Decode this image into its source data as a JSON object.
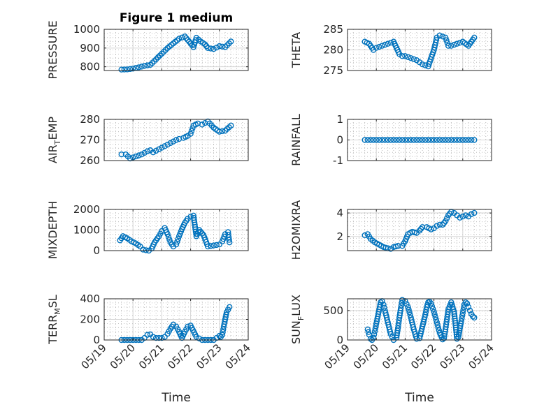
{
  "figure_title": "Figure 1 medium",
  "colors": {
    "marker": "#0072bd",
    "axis": "#262626",
    "grid": "#b0b0b0"
  },
  "chart_data": [
    {
      "type": "scatter",
      "title": "Figure 1 medium",
      "ylabel": "PRESSURE",
      "ylabel_parts": [
        "PRESSURE"
      ],
      "xlabel": "",
      "ylim": [
        780,
        1000
      ],
      "yticks": [
        800,
        900,
        1000
      ],
      "yticklabels": [
        "800",
        "900",
        "1000"
      ],
      "xlim": [
        0,
        5
      ],
      "xticks": [
        0,
        1,
        2,
        3,
        4,
        5
      ],
      "xticklabels": [],
      "grid": true,
      "series": [
        {
          "x": [
            0.6,
            0.8,
            1.0,
            1.2,
            1.4,
            1.6,
            1.8,
            2.0,
            2.2,
            2.4,
            2.6,
            2.8,
            3.0,
            3.1,
            3.2,
            3.35,
            3.5,
            3.6,
            3.8,
            4.0,
            4.2,
            4.4
          ],
          "y": [
            785,
            786,
            790,
            797,
            805,
            810,
            840,
            870,
            900,
            925,
            950,
            962,
            925,
            905,
            955,
            935,
            920,
            900,
            895,
            910,
            905,
            935
          ]
        }
      ]
    },
    {
      "type": "scatter",
      "title": "",
      "ylabel": "THETA",
      "ylabel_parts": [
        "THETA"
      ],
      "xlabel": "",
      "ylim": [
        275,
        285
      ],
      "yticks": [
        275,
        280,
        285
      ],
      "yticklabels": [
        "275",
        "280",
        "285"
      ],
      "xlim": [
        0,
        5
      ],
      "xticks": [
        0,
        1,
        2,
        3,
        4,
        5
      ],
      "xticklabels": [],
      "grid": true,
      "series": [
        {
          "x": [
            0.6,
            0.75,
            0.9,
            1.0,
            1.2,
            1.4,
            1.6,
            1.8,
            1.9,
            2.0,
            2.2,
            2.4,
            2.5,
            2.6,
            2.8,
            3.0,
            3.1,
            3.2,
            3.4,
            3.5,
            3.6,
            3.8,
            4.0,
            4.2,
            4.4
          ],
          "y": [
            282,
            281.5,
            280,
            280.5,
            281,
            281.5,
            282,
            279,
            278.5,
            278.5,
            278,
            277.5,
            277,
            276.5,
            276,
            280,
            283,
            283.5,
            283,
            281,
            281,
            281.5,
            282,
            281,
            283
          ]
        }
      ]
    },
    {
      "type": "scatter",
      "title": "",
      "ylabel": "AIR_TEMP",
      "ylabel_parts": [
        "AIR",
        "T",
        "EMP"
      ],
      "xlabel": "",
      "ylim": [
        260,
        280
      ],
      "yticks": [
        260,
        270,
        280
      ],
      "yticklabels": [
        "260",
        "270",
        "280"
      ],
      "xlim": [
        0,
        5
      ],
      "xticks": [
        0,
        1,
        2,
        3,
        4,
        5
      ],
      "xticklabels": [],
      "grid": true,
      "series": [
        {
          "x": [
            0.6,
            0.75,
            0.9,
            1.1,
            1.3,
            1.5,
            1.6,
            1.7,
            1.9,
            2.1,
            2.3,
            2.5,
            2.6,
            2.75,
            2.9,
            3.0,
            3.1,
            3.25,
            3.4,
            3.6,
            3.8,
            4.0,
            4.2,
            4.4
          ],
          "y": [
            263,
            263,
            261,
            262,
            263,
            264.5,
            265,
            264,
            265.5,
            267,
            268.5,
            270,
            270.5,
            271,
            272,
            273,
            277,
            278,
            277.5,
            279,
            276,
            274,
            274.5,
            277
          ]
        }
      ]
    },
    {
      "type": "scatter",
      "title": "",
      "ylabel": "RAINFALL",
      "ylabel_parts": [
        "RAINFALL"
      ],
      "xlabel": "",
      "ylim": [
        -1,
        1
      ],
      "yticks": [
        -1,
        0,
        1
      ],
      "yticklabels": [
        "-1",
        "0",
        "1"
      ],
      "xlim": [
        0,
        5
      ],
      "xticks": [
        0,
        1,
        2,
        3,
        4,
        5
      ],
      "xticklabels": [],
      "grid": true,
      "series": [
        {
          "x": [
            0.6,
            0.8,
            1.0,
            1.2,
            1.4,
            1.6,
            1.8,
            2.0,
            2.2,
            2.4,
            2.6,
            2.8,
            3.0,
            3.2,
            3.4,
            3.6,
            3.8,
            4.0,
            4.2,
            4.4
          ],
          "y": [
            0,
            0,
            0,
            0,
            0,
            0,
            0,
            0,
            0,
            0,
            0,
            0,
            0,
            0,
            0,
            0,
            0,
            0,
            0,
            0
          ]
        }
      ]
    },
    {
      "type": "scatter",
      "title": "",
      "ylabel": "MIXDEPTH",
      "ylabel_parts": [
        "MIXDEPTH"
      ],
      "xlabel": "",
      "ylim": [
        0,
        2000
      ],
      "yticks": [
        0,
        1000,
        2000
      ],
      "yticklabels": [
        "0",
        "1000",
        "2000"
      ],
      "xlim": [
        0,
        5
      ],
      "xticks": [
        0,
        1,
        2,
        3,
        4,
        5
      ],
      "xticklabels": [],
      "grid": true,
      "series": [
        {
          "x": [
            0.55,
            0.65,
            0.8,
            0.95,
            1.1,
            1.25,
            1.35,
            1.45,
            1.55,
            1.65,
            1.75,
            1.9,
            2.0,
            2.1,
            2.2,
            2.3,
            2.4,
            2.5,
            2.6,
            2.7,
            2.8,
            2.9,
            3.0,
            3.1,
            3.2,
            3.3,
            3.45,
            3.6,
            3.8,
            4.0,
            4.1,
            4.2,
            4.3,
            4.35
          ],
          "y": [
            500,
            700,
            600,
            450,
            350,
            200,
            50,
            20,
            0,
            100,
            400,
            700,
            950,
            1100,
            800,
            400,
            200,
            300,
            700,
            1050,
            1350,
            1550,
            1650,
            1700,
            700,
            1000,
            750,
            200,
            250,
            300,
            450,
            800,
            900,
            400
          ]
        }
      ]
    },
    {
      "type": "scatter",
      "title": "",
      "ylabel": "H2OMIXRA",
      "ylabel_parts": [
        "H2OMIXRA"
      ],
      "xlabel": "",
      "ylim": [
        0.8,
        4.3
      ],
      "yticks": [
        2,
        4
      ],
      "yticklabels": [
        "2",
        "4"
      ],
      "xlim": [
        0,
        5
      ],
      "xticks": [
        0,
        1,
        2,
        3,
        4,
        5
      ],
      "xticklabels": [],
      "grid": true,
      "series": [
        {
          "x": [
            0.6,
            0.7,
            0.8,
            0.95,
            1.1,
            1.25,
            1.4,
            1.5,
            1.6,
            1.75,
            1.9,
            2.0,
            2.1,
            2.25,
            2.4,
            2.5,
            2.6,
            2.75,
            2.9,
            3.0,
            3.1,
            3.2,
            3.3,
            3.4,
            3.5,
            3.6,
            3.7,
            3.8,
            3.9,
            4.0,
            4.1,
            4.2,
            4.3,
            4.4
          ],
          "y": [
            2.1,
            2.2,
            1.8,
            1.5,
            1.3,
            1.1,
            1.0,
            0.95,
            1.1,
            1.2,
            1.2,
            1.6,
            2.2,
            2.4,
            2.3,
            2.5,
            2.8,
            2.8,
            2.6,
            2.7,
            2.9,
            3.0,
            3.0,
            3.3,
            3.8,
            4.1,
            4.0,
            3.8,
            3.6,
            3.7,
            3.8,
            3.7,
            3.9,
            4.0
          ]
        }
      ]
    },
    {
      "type": "scatter",
      "title": "",
      "ylabel": "TERR_MSL",
      "ylabel_parts": [
        "TERR",
        "M",
        "SL"
      ],
      "xlabel": "Time",
      "ylim": [
        0,
        400
      ],
      "yticks": [
        0,
        200,
        400
      ],
      "yticklabels": [
        "0",
        "200",
        "400"
      ],
      "xlim": [
        0,
        5
      ],
      "xticks": [
        0,
        1,
        2,
        3,
        4,
        5
      ],
      "xticklabels": [
        "05/19",
        "05/20",
        "05/21",
        "05/22",
        "05/23",
        "05/24"
      ],
      "grid": true,
      "series": [
        {
          "x": [
            0.6,
            0.8,
            1.0,
            1.2,
            1.3,
            1.4,
            1.5,
            1.6,
            1.7,
            1.8,
            2.0,
            2.1,
            2.2,
            2.3,
            2.4,
            2.5,
            2.6,
            2.7,
            2.8,
            2.9,
            3.0,
            3.2,
            3.4,
            3.5,
            3.6,
            3.8,
            3.9,
            4.0,
            4.05,
            4.1,
            4.15,
            4.25,
            4.35
          ],
          "y": [
            0,
            0,
            0,
            0,
            0,
            20,
            50,
            55,
            30,
            20,
            20,
            30,
            60,
            110,
            150,
            130,
            80,
            20,
            80,
            130,
            140,
            30,
            0,
            0,
            0,
            0,
            20,
            40,
            30,
            50,
            130,
            270,
            320
          ]
        }
      ]
    },
    {
      "type": "scatter",
      "title": "",
      "ylabel": "SUN_FLUX",
      "ylabel_parts": [
        "SUN",
        "F",
        "LUX"
      ],
      "xlabel": "Time",
      "ylim": [
        0,
        700
      ],
      "yticks": [
        0,
        500
      ],
      "yticklabels": [
        "0",
        "500"
      ],
      "xlim": [
        0,
        5
      ],
      "xticks": [
        0,
        1,
        2,
        3,
        4,
        5
      ],
      "xticklabels": [
        "05/19",
        "05/20",
        "05/21",
        "05/22",
        "05/23",
        "05/24"
      ],
      "grid": true,
      "series": [
        {
          "x": [
            0.7,
            0.75,
            0.8,
            0.85,
            0.9,
            0.95,
            1.0,
            1.05,
            1.1,
            1.15,
            1.2,
            1.25,
            1.3,
            1.4,
            1.5,
            1.6,
            1.7,
            1.75,
            1.8,
            1.85,
            1.9,
            2.0,
            2.1,
            2.2,
            2.3,
            2.4,
            2.5,
            2.6,
            2.7,
            2.75,
            2.8,
            2.85,
            2.9,
            3.0,
            3.1,
            3.2,
            3.3,
            3.35,
            3.4,
            3.45,
            3.5,
            3.6,
            3.7,
            3.8,
            3.85,
            3.9,
            3.95,
            4.0,
            4.05,
            4.1,
            4.15,
            4.2,
            4.25,
            4.3,
            4.35,
            4.4
          ],
          "y": [
            180,
            90,
            20,
            0,
            40,
            150,
            280,
            400,
            520,
            640,
            660,
            600,
            500,
            300,
            100,
            0,
            40,
            200,
            380,
            540,
            680,
            660,
            560,
            380,
            180,
            20,
            30,
            230,
            430,
            560,
            640,
            650,
            620,
            480,
            300,
            120,
            10,
            30,
            180,
            350,
            520,
            640,
            480,
            20,
            50,
            200,
            320,
            460,
            600,
            640,
            620,
            560,
            500,
            440,
            400,
            380
          ]
        }
      ]
    }
  ]
}
